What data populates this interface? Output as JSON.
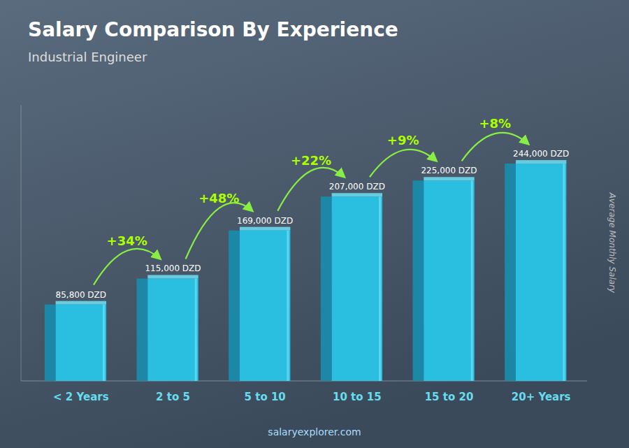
{
  "chart_data": {
    "type": "bar",
    "title": "Salary Comparison By Experience",
    "subtitle": "Industrial Engineer",
    "y_label": "Average Monthly Salary",
    "categories": [
      "< 2 Years",
      "2 to 5",
      "5 to 10",
      "10 to 15",
      "15 to 20",
      "20+ Years"
    ],
    "values": [
      85800,
      115000,
      169000,
      207000,
      225000,
      244000
    ],
    "value_labels": [
      "85,800 DZD",
      "115,000 DZD",
      "169,000 DZD",
      "207,000 DZD",
      "225,000 DZD",
      "244,000 DZD"
    ],
    "data_labels": true,
    "annotations": [
      "+34%",
      "+48%",
      "+22%",
      "+9%",
      "+8%"
    ],
    "watermark": "salaryexplorer.com",
    "color": "#29c5e8",
    "ylim": [
      0,
      310000
    ],
    "tick_labels": "x"
  }
}
